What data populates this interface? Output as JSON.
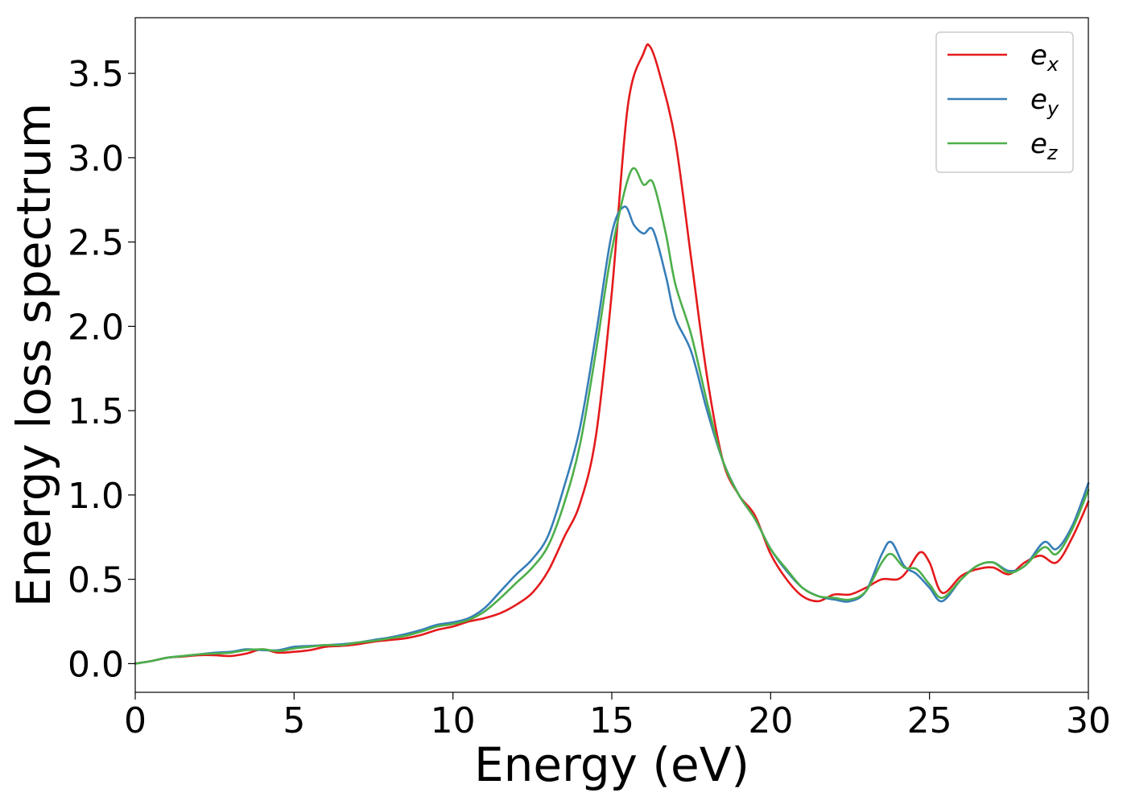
{
  "chart_data": {
    "type": "line",
    "title": "",
    "xlabel": "Energy (eV)",
    "ylabel": "Energy loss spectrum",
    "xlim": [
      0,
      30
    ],
    "ylim": [
      -0.17,
      3.83
    ],
    "xticks": [
      0,
      5,
      10,
      15,
      20,
      25,
      30
    ],
    "xtick_labels": [
      "0",
      "5",
      "10",
      "15",
      "20",
      "25",
      "30"
    ],
    "yticks": [
      0.0,
      0.5,
      1.0,
      1.5,
      2.0,
      2.5,
      3.0,
      3.5
    ],
    "ytick_labels": [
      "0.0",
      "0.5",
      "1.0",
      "1.5",
      "2.0",
      "2.5",
      "3.0",
      "3.5"
    ],
    "grid": false,
    "legend": "top-right",
    "series": [
      {
        "name": "e_x",
        "label_base": "e",
        "label_sub": "x",
        "color": "#e41a1c",
        "points": [
          [
            0,
            0.0
          ],
          [
            0.5,
            0.015
          ],
          [
            1,
            0.035
          ],
          [
            1.5,
            0.042
          ],
          [
            2,
            0.05
          ],
          [
            2.5,
            0.05
          ],
          [
            3,
            0.045
          ],
          [
            3.5,
            0.06
          ],
          [
            4,
            0.085
          ],
          [
            4.5,
            0.065
          ],
          [
            5,
            0.07
          ],
          [
            5.5,
            0.08
          ],
          [
            6,
            0.1
          ],
          [
            6.5,
            0.105
          ],
          [
            7,
            0.115
          ],
          [
            7.5,
            0.13
          ],
          [
            8,
            0.14
          ],
          [
            8.5,
            0.15
          ],
          [
            9,
            0.17
          ],
          [
            9.5,
            0.2
          ],
          [
            10,
            0.22
          ],
          [
            10.5,
            0.25
          ],
          [
            11,
            0.27
          ],
          [
            11.5,
            0.3
          ],
          [
            12,
            0.35
          ],
          [
            12.5,
            0.42
          ],
          [
            13,
            0.55
          ],
          [
            13.5,
            0.75
          ],
          [
            14,
            0.95
          ],
          [
            14.5,
            1.35
          ],
          [
            15,
            2.2
          ],
          [
            15.5,
            3.3
          ],
          [
            16,
            3.62
          ],
          [
            16.2,
            3.66
          ],
          [
            16.5,
            3.5
          ],
          [
            17,
            3.1
          ],
          [
            17.5,
            2.4
          ],
          [
            18,
            1.7
          ],
          [
            18.5,
            1.2
          ],
          [
            19,
            1.0
          ],
          [
            19.5,
            0.88
          ],
          [
            20,
            0.65
          ],
          [
            20.5,
            0.5
          ],
          [
            21,
            0.4
          ],
          [
            21.5,
            0.37
          ],
          [
            22,
            0.41
          ],
          [
            22.5,
            0.41
          ],
          [
            23,
            0.45
          ],
          [
            23.5,
            0.5
          ],
          [
            24,
            0.5
          ],
          [
            24.3,
            0.55
          ],
          [
            24.7,
            0.66
          ],
          [
            25,
            0.6
          ],
          [
            25.4,
            0.42
          ],
          [
            26,
            0.52
          ],
          [
            26.5,
            0.56
          ],
          [
            27,
            0.57
          ],
          [
            27.5,
            0.53
          ],
          [
            28,
            0.6
          ],
          [
            28.5,
            0.64
          ],
          [
            29,
            0.6
          ],
          [
            29.5,
            0.75
          ],
          [
            30,
            0.96
          ]
        ]
      },
      {
        "name": "e_y",
        "label_base": "e",
        "label_sub": "y",
        "color": "#377eb8",
        "points": [
          [
            0,
            0.0
          ],
          [
            0.5,
            0.015
          ],
          [
            1,
            0.035
          ],
          [
            1.5,
            0.045
          ],
          [
            2,
            0.055
          ],
          [
            2.5,
            0.065
          ],
          [
            3,
            0.07
          ],
          [
            3.5,
            0.085
          ],
          [
            4,
            0.08
          ],
          [
            4.5,
            0.08
          ],
          [
            5,
            0.1
          ],
          [
            5.5,
            0.105
          ],
          [
            6,
            0.11
          ],
          [
            6.5,
            0.115
          ],
          [
            7,
            0.125
          ],
          [
            7.5,
            0.14
          ],
          [
            8,
            0.155
          ],
          [
            8.5,
            0.175
          ],
          [
            9,
            0.2
          ],
          [
            9.5,
            0.23
          ],
          [
            10,
            0.245
          ],
          [
            10.5,
            0.27
          ],
          [
            11,
            0.33
          ],
          [
            11.5,
            0.43
          ],
          [
            12,
            0.53
          ],
          [
            12.5,
            0.62
          ],
          [
            13,
            0.76
          ],
          [
            13.5,
            1.05
          ],
          [
            14,
            1.4
          ],
          [
            14.5,
            1.95
          ],
          [
            15,
            2.55
          ],
          [
            15.4,
            2.71
          ],
          [
            15.7,
            2.6
          ],
          [
            16,
            2.55
          ],
          [
            16.3,
            2.57
          ],
          [
            16.7,
            2.3
          ],
          [
            17,
            2.05
          ],
          [
            17.5,
            1.85
          ],
          [
            18,
            1.5
          ],
          [
            18.5,
            1.2
          ],
          [
            19,
            1.0
          ],
          [
            19.5,
            0.86
          ],
          [
            20,
            0.68
          ],
          [
            20.5,
            0.55
          ],
          [
            21,
            0.45
          ],
          [
            21.5,
            0.4
          ],
          [
            22,
            0.38
          ],
          [
            22.5,
            0.37
          ],
          [
            23,
            0.43
          ],
          [
            23.5,
            0.65
          ],
          [
            23.8,
            0.72
          ],
          [
            24.2,
            0.58
          ],
          [
            24.6,
            0.53
          ],
          [
            25,
            0.45
          ],
          [
            25.4,
            0.37
          ],
          [
            26,
            0.5
          ],
          [
            26.5,
            0.58
          ],
          [
            27,
            0.6
          ],
          [
            27.5,
            0.55
          ],
          [
            28,
            0.58
          ],
          [
            28.6,
            0.72
          ],
          [
            29,
            0.68
          ],
          [
            29.5,
            0.82
          ],
          [
            30,
            1.07
          ]
        ]
      },
      {
        "name": "e_z",
        "label_base": "e",
        "label_sub": "z",
        "color": "#4daf4a",
        "points": [
          [
            0,
            0.0
          ],
          [
            0.5,
            0.015
          ],
          [
            1,
            0.035
          ],
          [
            1.5,
            0.045
          ],
          [
            2,
            0.055
          ],
          [
            2.5,
            0.06
          ],
          [
            3,
            0.065
          ],
          [
            3.5,
            0.08
          ],
          [
            4,
            0.085
          ],
          [
            4.5,
            0.075
          ],
          [
            5,
            0.09
          ],
          [
            5.5,
            0.1
          ],
          [
            6,
            0.11
          ],
          [
            6.5,
            0.11
          ],
          [
            7,
            0.125
          ],
          [
            7.5,
            0.135
          ],
          [
            8,
            0.15
          ],
          [
            8.5,
            0.165
          ],
          [
            9,
            0.19
          ],
          [
            9.5,
            0.22
          ],
          [
            10,
            0.235
          ],
          [
            10.5,
            0.26
          ],
          [
            11,
            0.31
          ],
          [
            11.5,
            0.39
          ],
          [
            12,
            0.48
          ],
          [
            12.5,
            0.57
          ],
          [
            13,
            0.7
          ],
          [
            13.5,
            0.95
          ],
          [
            14,
            1.3
          ],
          [
            14.5,
            1.85
          ],
          [
            15,
            2.45
          ],
          [
            15.6,
            2.92
          ],
          [
            16,
            2.84
          ],
          [
            16.3,
            2.85
          ],
          [
            16.7,
            2.55
          ],
          [
            17,
            2.25
          ],
          [
            17.5,
            1.95
          ],
          [
            18,
            1.55
          ],
          [
            18.5,
            1.2
          ],
          [
            19,
            1.0
          ],
          [
            19.5,
            0.86
          ],
          [
            20,
            0.68
          ],
          [
            20.5,
            0.56
          ],
          [
            21,
            0.45
          ],
          [
            21.5,
            0.4
          ],
          [
            22,
            0.39
          ],
          [
            22.5,
            0.38
          ],
          [
            23,
            0.43
          ],
          [
            23.5,
            0.6
          ],
          [
            23.8,
            0.65
          ],
          [
            24.2,
            0.57
          ],
          [
            24.6,
            0.56
          ],
          [
            25,
            0.47
          ],
          [
            25.4,
            0.39
          ],
          [
            26,
            0.5
          ],
          [
            26.5,
            0.58
          ],
          [
            27,
            0.6
          ],
          [
            27.5,
            0.54
          ],
          [
            28,
            0.58
          ],
          [
            28.6,
            0.69
          ],
          [
            29,
            0.65
          ],
          [
            29.5,
            0.8
          ],
          [
            30,
            1.03
          ]
        ]
      }
    ]
  }
}
